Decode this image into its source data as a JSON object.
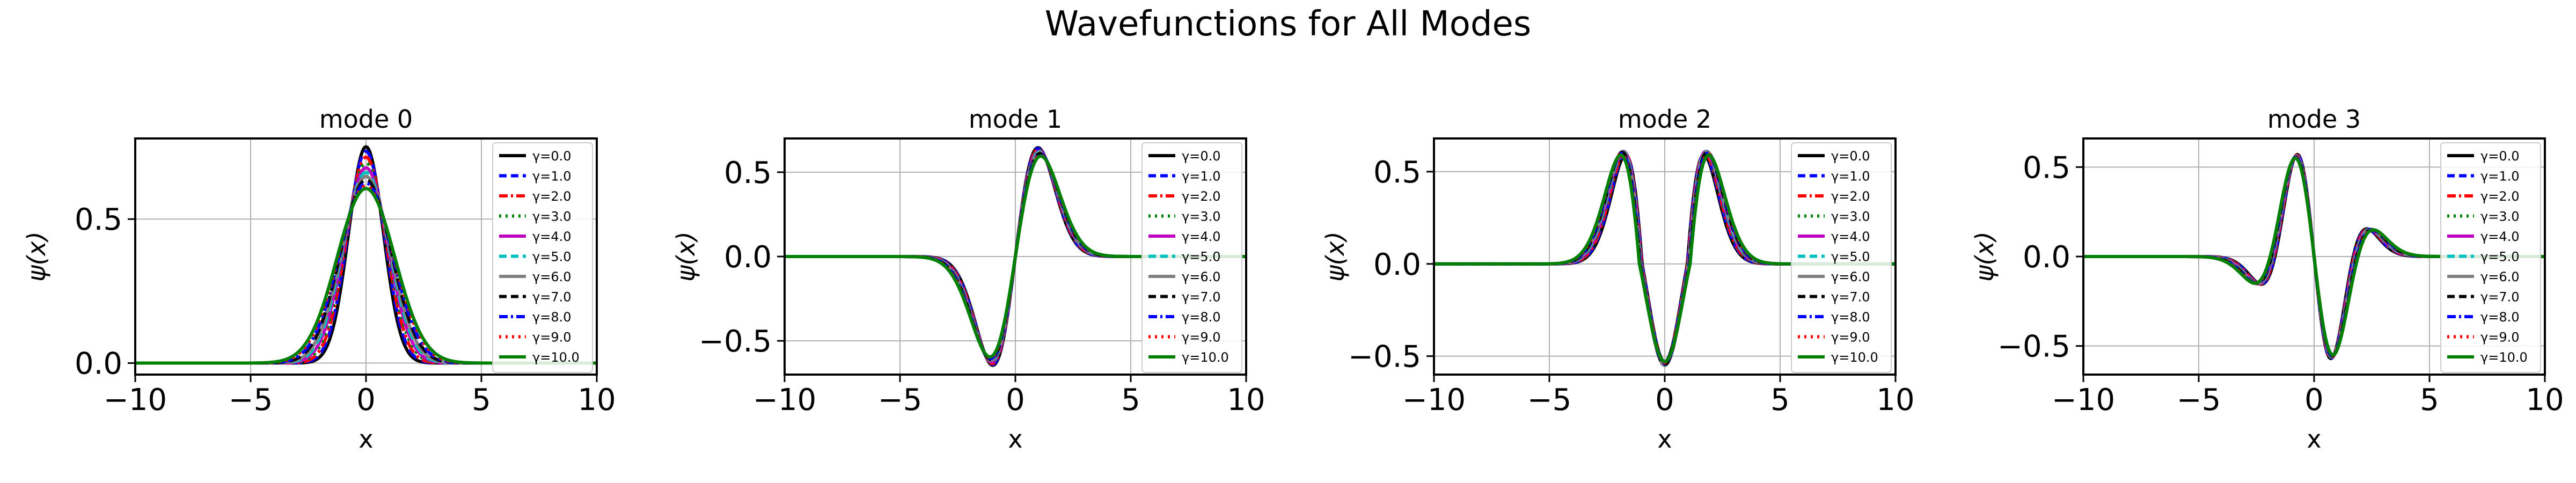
{
  "figure": {
    "title": "Wavefunctions for All Modes"
  },
  "chart_data": [
    {
      "type": "line",
      "title": "mode 0",
      "xlabel": "x",
      "ylabel": "ψ(x)",
      "xlim": [
        -10,
        10
      ],
      "ylim": [
        -0.04,
        0.78
      ],
      "xticks": [
        -10,
        -5,
        0,
        5,
        10
      ],
      "xtick_labels": [
        "−10",
        "−5",
        "0",
        "5",
        "10"
      ],
      "yticks": [
        0.0,
        0.5
      ],
      "ytick_labels": [
        "0.0",
        "0.5"
      ],
      "grid": true,
      "legend_position": "top-right",
      "series": [
        {
          "name": "γ=0.0",
          "color": "#000000",
          "linestyle": "solid",
          "y_peak": 0.751
        },
        {
          "name": "γ=1.0",
          "color": "#0000ff",
          "linestyle": "dashed",
          "y_peak": 0.735
        },
        {
          "name": "γ=2.0",
          "color": "#ff0000",
          "linestyle": "dashdot",
          "y_peak": 0.715
        },
        {
          "name": "γ=3.0",
          "color": "#008000",
          "linestyle": "dotted",
          "y_peak": 0.695
        },
        {
          "name": "γ=4.0",
          "color": "#bf00bf",
          "linestyle": "solid",
          "y_peak": 0.678
        },
        {
          "name": "γ=5.0",
          "color": "#00bfbf",
          "linestyle": "dashed",
          "y_peak": 0.662
        },
        {
          "name": "γ=6.0",
          "color": "#808080",
          "linestyle": "solid",
          "y_peak": 0.648
        },
        {
          "name": "γ=7.0",
          "color": "#000000",
          "linestyle": "dashed",
          "y_peak": 0.636
        },
        {
          "name": "γ=8.0",
          "color": "#0000ff",
          "linestyle": "dashdot",
          "y_peak": 0.625
        },
        {
          "name": "γ=9.0",
          "color": "#ff0000",
          "linestyle": "dotted",
          "y_peak": 0.615
        },
        {
          "name": "γ=10.0",
          "color": "#008000",
          "linestyle": "solid",
          "y_peak": 0.606
        }
      ]
    },
    {
      "type": "line",
      "title": "mode 1",
      "xlabel": "x",
      "ylabel": "ψ(x)",
      "xlim": [
        -10,
        10
      ],
      "ylim": [
        -0.7,
        0.7
      ],
      "xticks": [
        -10,
        -5,
        0,
        5,
        10
      ],
      "xtick_labels": [
        "−10",
        "−5",
        "0",
        "5",
        "10"
      ],
      "yticks": [
        -0.5,
        0.0,
        0.5
      ],
      "ytick_labels": [
        "−0.5",
        "0.0",
        "0.5"
      ],
      "grid": true,
      "legend_position": "top-right",
      "series": [
        {
          "name": "γ=0.0",
          "color": "#000000",
          "linestyle": "solid",
          "extrema": [
            -0.645,
            0.645
          ]
        },
        {
          "name": "γ=1.0",
          "color": "#0000ff",
          "linestyle": "dashed",
          "extrema": [
            -0.64,
            0.64
          ]
        },
        {
          "name": "γ=2.0",
          "color": "#ff0000",
          "linestyle": "dashdot",
          "extrema": [
            -0.635,
            0.635
          ]
        },
        {
          "name": "γ=3.0",
          "color": "#008000",
          "linestyle": "dotted",
          "extrema": [
            -0.63,
            0.63
          ]
        },
        {
          "name": "γ=4.0",
          "color": "#bf00bf",
          "linestyle": "solid",
          "extrema": [
            -0.625,
            0.625
          ]
        },
        {
          "name": "γ=5.0",
          "color": "#00bfbf",
          "linestyle": "dashed",
          "extrema": [
            -0.62,
            0.62
          ]
        },
        {
          "name": "γ=6.0",
          "color": "#808080",
          "linestyle": "solid",
          "extrema": [
            -0.615,
            0.615
          ]
        },
        {
          "name": "γ=7.0",
          "color": "#000000",
          "linestyle": "dashed",
          "extrema": [
            -0.61,
            0.61
          ]
        },
        {
          "name": "γ=8.0",
          "color": "#0000ff",
          "linestyle": "dashdot",
          "extrema": [
            -0.605,
            0.605
          ]
        },
        {
          "name": "γ=9.0",
          "color": "#ff0000",
          "linestyle": "dotted",
          "extrema": [
            -0.6,
            0.6
          ]
        },
        {
          "name": "γ=10.0",
          "color": "#008000",
          "linestyle": "solid",
          "extrema": [
            -0.595,
            0.595
          ]
        }
      ]
    },
    {
      "type": "line",
      "title": "mode 2",
      "xlabel": "x",
      "ylabel": "ψ(x)",
      "xlim": [
        -10,
        10
      ],
      "ylim": [
        -0.6,
        0.68
      ],
      "xticks": [
        -10,
        -5,
        0,
        5,
        10
      ],
      "xtick_labels": [
        "−10",
        "−5",
        "0",
        "5",
        "10"
      ],
      "yticks": [
        -0.5,
        0.0,
        0.5
      ],
      "ytick_labels": [
        "−0.5",
        "0.0",
        "0.5"
      ],
      "grid": true,
      "legend_position": "top-right",
      "series": [
        {
          "name": "γ=0.0",
          "color": "#000000",
          "linestyle": "solid",
          "extrema": [
            -0.53,
            0.59
          ]
        },
        {
          "name": "γ=1.0",
          "color": "#0000ff",
          "linestyle": "dashed",
          "extrema": [
            -0.535,
            0.595
          ]
        },
        {
          "name": "γ=2.0",
          "color": "#ff0000",
          "linestyle": "dashdot",
          "extrema": [
            -0.54,
            0.6
          ]
        },
        {
          "name": "γ=3.0",
          "color": "#008000",
          "linestyle": "dotted",
          "extrema": [
            -0.545,
            0.605
          ]
        },
        {
          "name": "γ=4.0",
          "color": "#bf00bf",
          "linestyle": "solid",
          "extrema": [
            -0.55,
            0.61
          ]
        },
        {
          "name": "γ=5.0",
          "color": "#00bfbf",
          "linestyle": "dashed",
          "extrema": [
            -0.55,
            0.61
          ]
        },
        {
          "name": "γ=6.0",
          "color": "#808080",
          "linestyle": "solid",
          "extrema": [
            -0.55,
            0.61
          ]
        },
        {
          "name": "γ=7.0",
          "color": "#000000",
          "linestyle": "dashed",
          "extrema": [
            -0.545,
            0.605
          ]
        },
        {
          "name": "γ=8.0",
          "color": "#0000ff",
          "linestyle": "dashdot",
          "extrema": [
            -0.54,
            0.6
          ]
        },
        {
          "name": "γ=9.0",
          "color": "#ff0000",
          "linestyle": "dotted",
          "extrema": [
            -0.535,
            0.595
          ]
        },
        {
          "name": "γ=10.0",
          "color": "#008000",
          "linestyle": "solid",
          "extrema": [
            -0.53,
            0.59
          ]
        }
      ]
    },
    {
      "type": "line",
      "title": "mode 3",
      "xlabel": "x",
      "ylabel": "ψ(x)",
      "xlim": [
        -10,
        10
      ],
      "ylim": [
        -0.66,
        0.66
      ],
      "xticks": [
        -10,
        -5,
        0,
        5,
        10
      ],
      "xtick_labels": [
        "−10",
        "−5",
        "0",
        "5",
        "10"
      ],
      "yticks": [
        -0.5,
        0.0,
        0.5
      ],
      "ytick_labels": [
        "−0.5",
        "0.0",
        "0.5"
      ],
      "grid": true,
      "legend_position": "top-right",
      "series": [
        {
          "name": "γ=0.0",
          "color": "#000000",
          "linestyle": "solid",
          "extrema": [
            -0.57,
            0.57
          ]
        },
        {
          "name": "γ=1.0",
          "color": "#0000ff",
          "linestyle": "dashed",
          "extrema": [
            -0.568,
            0.568
          ]
        },
        {
          "name": "γ=2.0",
          "color": "#ff0000",
          "linestyle": "dashdot",
          "extrema": [
            -0.566,
            0.566
          ]
        },
        {
          "name": "γ=3.0",
          "color": "#008000",
          "linestyle": "dotted",
          "extrema": [
            -0.564,
            0.564
          ]
        },
        {
          "name": "γ=4.0",
          "color": "#bf00bf",
          "linestyle": "solid",
          "extrema": [
            -0.562,
            0.562
          ]
        },
        {
          "name": "γ=5.0",
          "color": "#00bfbf",
          "linestyle": "dashed",
          "extrema": [
            -0.56,
            0.56
          ]
        },
        {
          "name": "γ=6.0",
          "color": "#808080",
          "linestyle": "solid",
          "extrema": [
            -0.558,
            0.558
          ]
        },
        {
          "name": "γ=7.0",
          "color": "#000000",
          "linestyle": "dashed",
          "extrema": [
            -0.556,
            0.556
          ]
        },
        {
          "name": "γ=8.0",
          "color": "#0000ff",
          "linestyle": "dashdot",
          "extrema": [
            -0.554,
            0.554
          ]
        },
        {
          "name": "γ=9.0",
          "color": "#ff0000",
          "linestyle": "dotted",
          "extrema": [
            -0.552,
            0.552
          ]
        },
        {
          "name": "γ=10.0",
          "color": "#008000",
          "linestyle": "solid",
          "extrema": [
            -0.55,
            0.55
          ]
        }
      ]
    }
  ]
}
